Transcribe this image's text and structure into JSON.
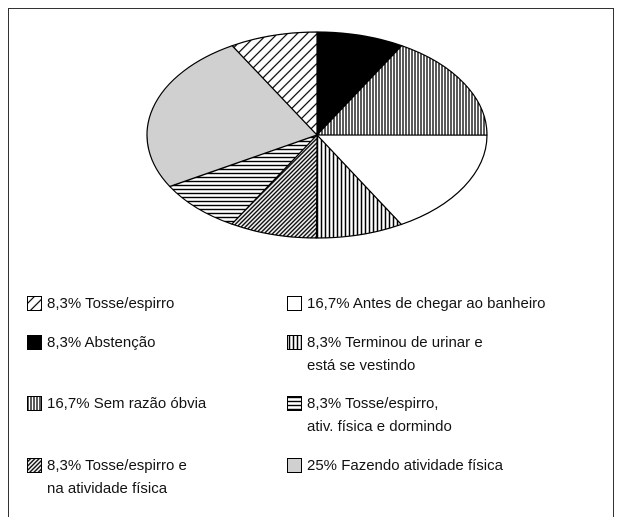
{
  "chart_data": {
    "type": "pie",
    "categories": [
      "8,3% Abstenção",
      "16,7% Sem razão óbvia",
      "16,7% Antes de chegar ao banheiro",
      "8,3% Terminou de urinar e\nestá se vestindo",
      "8,3% Tosse/espirro e\nna atividade física",
      "8,3% Tosse/espirro,\nativ. física e dormindo",
      "25% Fazendo atividade física",
      "8,3% Tosse/espirro"
    ],
    "values": [
      8.3,
      16.7,
      16.7,
      8.3,
      8.3,
      8.3,
      25,
      8.3
    ]
  }
}
